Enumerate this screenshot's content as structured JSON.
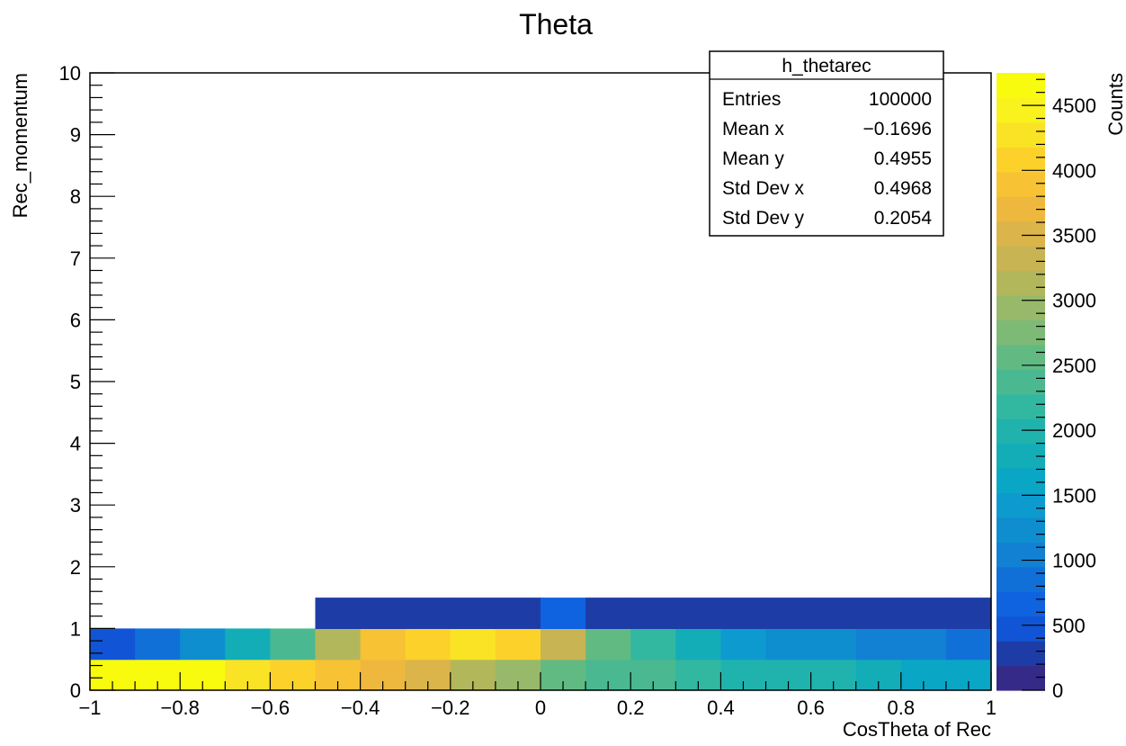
{
  "chart_data": {
    "type": "heatmap",
    "title": "Theta",
    "xlabel": "CosTheta of Rec",
    "ylabel": "Rec_momentum",
    "zlabel": "Counts",
    "xlim": [
      -1,
      1
    ],
    "ylim": [
      0,
      10
    ],
    "zlim": [
      0,
      4750
    ],
    "x_bin_edges": [
      -1,
      -0.9,
      -0.8,
      -0.7,
      -0.6,
      -0.5,
      -0.4,
      -0.3,
      -0.2,
      -0.1,
      0,
      0.1,
      0.2,
      0.3,
      0.4,
      0.5,
      0.6,
      0.7,
      0.8,
      0.9,
      1
    ],
    "y_bin_edges": [
      0,
      0.5,
      1,
      1.5
    ],
    "counts": [
      [
        4650,
        4700,
        4700,
        4300,
        4100,
        3900,
        3700,
        3500,
        3200,
        2900,
        2600,
        2450,
        2400,
        2200,
        2000,
        1950,
        1900,
        1800,
        1700,
        1600
      ],
      [
        450,
        800,
        1300,
        1800,
        2300,
        3100,
        3800,
        4000,
        4300,
        4000,
        3300,
        2600,
        2100,
        1800,
        1400,
        1250,
        1150,
        1000,
        950,
        800
      ],
      [
        0,
        0,
        0,
        0,
        0,
        200,
        200,
        200,
        200,
        200,
        600,
        200,
        200,
        200,
        200,
        200,
        200,
        200,
        200,
        200
      ]
    ],
    "x_ticks": [
      "−1",
      "−0.8",
      "−0.6",
      "−0.4",
      "−0.2",
      "0",
      "0.2",
      "0.4",
      "0.6",
      "0.8",
      "1"
    ],
    "y_ticks": [
      "0",
      "1",
      "2",
      "3",
      "4",
      "5",
      "6",
      "7",
      "8",
      "9",
      "10"
    ],
    "z_ticks": [
      "0",
      "500",
      "1000",
      "1500",
      "2000",
      "2500",
      "3000",
      "3500",
      "4000",
      "4500"
    ],
    "palette": [
      "#352a87",
      "#1e3ca6",
      "#1155d6",
      "#0f63e0",
      "#1170d8",
      "#1281d3",
      "#0f8ecf",
      "#0d9bcf",
      "#0aa6c6",
      "#13adb8",
      "#20b3ad",
      "#32b8a0",
      "#4ab991",
      "#62ba83",
      "#7dba76",
      "#98b969",
      "#b2b75c",
      "#c8b452",
      "#dbb44a",
      "#eeb83e",
      "#f7c233",
      "#fcd22a",
      "#fae324",
      "#f9f21d",
      "#f9fb0e"
    ],
    "stats_box": {
      "name": "h_thetarec",
      "rows": [
        {
          "label": "Entries",
          "value": "100000"
        },
        {
          "label": "Mean x",
          "value": "−0.1696"
        },
        {
          "label": "Mean y",
          "value": "0.4955"
        },
        {
          "label": "Std Dev x",
          "value": "0.4968"
        },
        {
          "label": "Std Dev y",
          "value": "0.2054"
        }
      ]
    }
  }
}
